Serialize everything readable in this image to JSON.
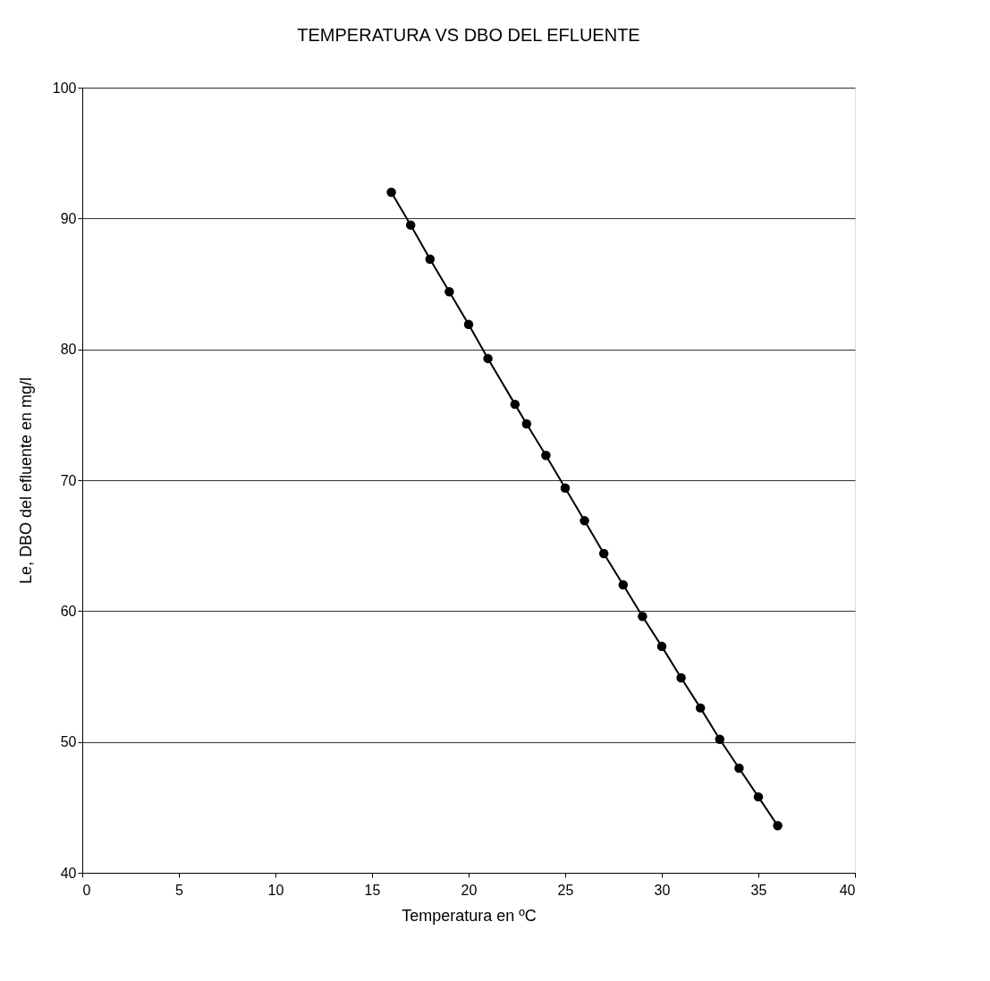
{
  "chart_data": {
    "type": "line",
    "title": "TEMPERATURA VS DBO DEL EFLUENTE",
    "xlabel": "Temperatura en ºC",
    "ylabel": "Le,  DBO del efluente en mg/l",
    "x": [
      16,
      17,
      18,
      19,
      20,
      21,
      22.4,
      23,
      24,
      25,
      26,
      27,
      28,
      29,
      30,
      31,
      32,
      33,
      34,
      35,
      36
    ],
    "series": [
      {
        "color": "#000000",
        "values": [
          92.0,
          89.5,
          86.9,
          84.4,
          81.9,
          79.3,
          75.8,
          74.3,
          71.9,
          69.4,
          66.9,
          64.4,
          62.0,
          59.6,
          57.3,
          54.9,
          52.6,
          50.2,
          48.0,
          45.8,
          43.6
        ]
      }
    ],
    "xlim": [
      0,
      40
    ],
    "xticks": [
      0,
      5,
      10,
      15,
      20,
      25,
      30,
      35,
      40
    ],
    "ylim": [
      40,
      100
    ],
    "yticks": [
      40,
      50,
      60,
      70,
      80,
      90,
      100
    ],
    "grid": "y",
    "marker": "circle",
    "line_style": "solid"
  }
}
